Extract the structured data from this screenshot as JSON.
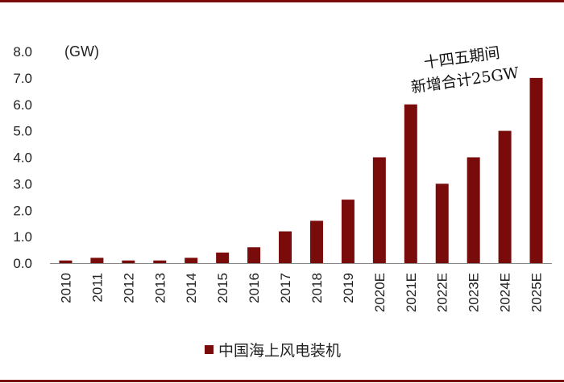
{
  "chart_data": {
    "type": "bar",
    "title": "",
    "unit_label": "(GW)",
    "categories": [
      "2010",
      "2011",
      "2012",
      "2013",
      "2014",
      "2015",
      "2016",
      "2017",
      "2018",
      "2019",
      "2020E",
      "2021E",
      "2022E",
      "2023E",
      "2024E",
      "2025E"
    ],
    "series": [
      {
        "name": "中国海上风电装机",
        "values": [
          0.1,
          0.2,
          0.1,
          0.1,
          0.2,
          0.4,
          0.6,
          1.2,
          1.6,
          2.4,
          4.0,
          6.0,
          3.0,
          4.0,
          5.0,
          7.0
        ]
      }
    ],
    "yticks": [
      "0.0",
      "1.0",
      "2.0",
      "3.0",
      "4.0",
      "5.0",
      "6.0",
      "7.0",
      "8.0"
    ],
    "ylim": [
      0,
      8
    ],
    "annotation": {
      "line1": "十四五期间",
      "line2": "新增合计25GW"
    },
    "legend_position": "bottom",
    "grid": false,
    "colors": {
      "bar": "#7a0b0b",
      "frame": "#7a0b0b",
      "axis": "#888888"
    }
  }
}
